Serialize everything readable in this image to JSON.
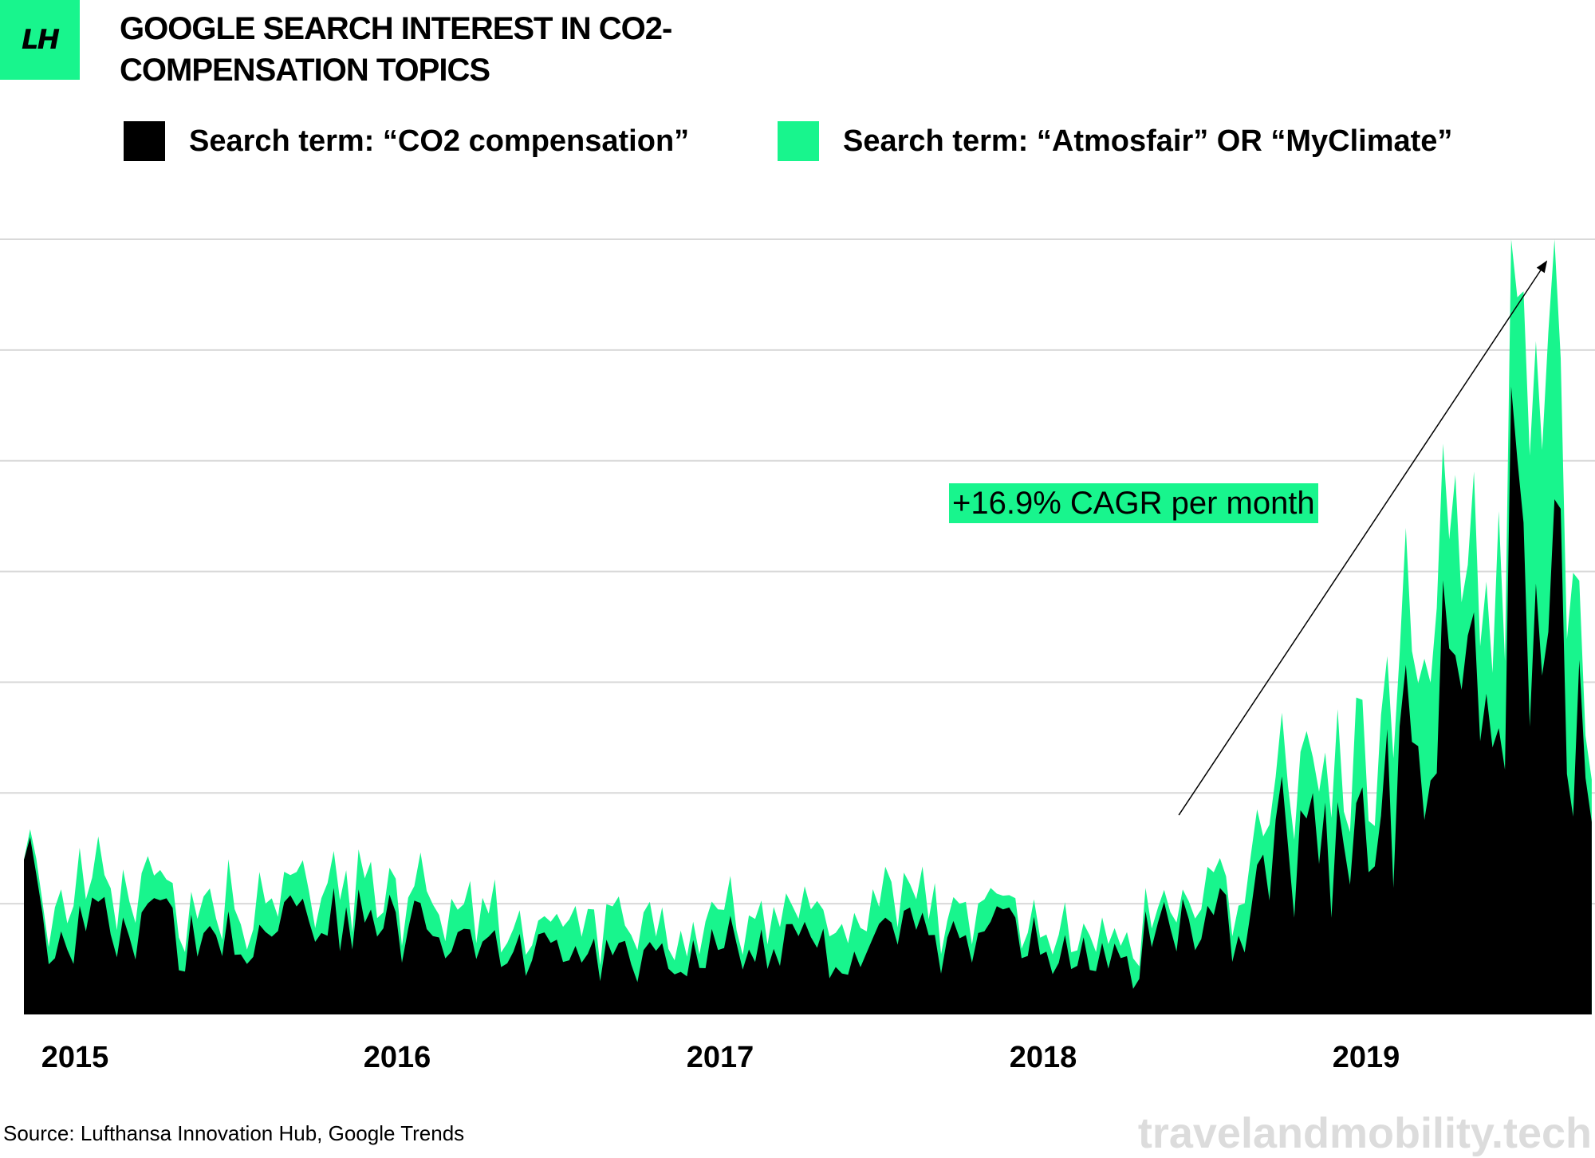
{
  "logo": {
    "text": "LH"
  },
  "chart_data": {
    "type": "area",
    "stacked": true,
    "title": "GOOGLE SEARCH INTEREST IN CO2-COMPENSATION TOPICS",
    "y_axis_labels": false,
    "grid": true,
    "legend_position": "top",
    "x_ticks": [
      "2015",
      "2016",
      "2017",
      "2018",
      "2019"
    ],
    "x_start": 2015.0,
    "x_end": 2019.86,
    "ylim": [
      0,
      7
    ],
    "series": [
      {
        "name": "Search term: “CO2 compensation”",
        "color": "#000000",
        "keyframes": [
          [
            2015.0,
            1.3
          ],
          [
            2015.1,
            0.6
          ],
          [
            2015.2,
            0.8
          ],
          [
            2015.35,
            0.9
          ],
          [
            2015.55,
            0.6
          ],
          [
            2015.75,
            0.8
          ],
          [
            2016.0,
            0.9
          ],
          [
            2016.25,
            0.7
          ],
          [
            2016.5,
            0.6
          ],
          [
            2016.75,
            0.5
          ],
          [
            2017.0,
            0.5
          ],
          [
            2017.2,
            0.7
          ],
          [
            2017.4,
            0.6
          ],
          [
            2017.55,
            0.5
          ],
          [
            2017.7,
            0.7
          ],
          [
            2017.9,
            0.6
          ],
          [
            2018.0,
            0.7
          ],
          [
            2018.2,
            0.6
          ],
          [
            2018.45,
            0.4
          ],
          [
            2018.5,
            1.0
          ],
          [
            2018.6,
            0.8
          ],
          [
            2018.75,
            0.8
          ],
          [
            2018.85,
            1.1
          ],
          [
            2018.9,
            1.6
          ],
          [
            2019.0,
            1.5
          ],
          [
            2019.1,
            1.3
          ],
          [
            2019.2,
            1.6
          ],
          [
            2019.3,
            2.3
          ],
          [
            2019.4,
            2.8
          ],
          [
            2019.5,
            3.8
          ],
          [
            2019.55,
            3.1
          ],
          [
            2019.6,
            4.2
          ],
          [
            2019.65,
            3.6
          ],
          [
            2019.7,
            2.8
          ],
          [
            2019.75,
            3.9
          ],
          [
            2019.8,
            2.6
          ],
          [
            2019.86,
            1.8
          ]
        ]
      },
      {
        "name": "Search term: “Atmosfair” OR “MyClimate”",
        "color": "#18f58d",
        "keyframes": [
          [
            2015.0,
            0.0
          ],
          [
            2015.1,
            0.3
          ],
          [
            2015.2,
            0.4
          ],
          [
            2015.35,
            0.3
          ],
          [
            2015.55,
            0.3
          ],
          [
            2015.75,
            0.3
          ],
          [
            2016.0,
            0.3
          ],
          [
            2016.25,
            0.3
          ],
          [
            2016.5,
            0.3
          ],
          [
            2016.75,
            0.3
          ],
          [
            2017.0,
            0.3
          ],
          [
            2017.2,
            0.3
          ],
          [
            2017.4,
            0.3
          ],
          [
            2017.55,
            0.4
          ],
          [
            2017.7,
            0.3
          ],
          [
            2017.9,
            0.3
          ],
          [
            2018.0,
            0.2
          ],
          [
            2018.2,
            0.2
          ],
          [
            2018.45,
            0.2
          ],
          [
            2018.5,
            0.1
          ],
          [
            2018.6,
            0.2
          ],
          [
            2018.75,
            0.3
          ],
          [
            2018.85,
            0.4
          ],
          [
            2018.9,
            0.6
          ],
          [
            2019.0,
            0.6
          ],
          [
            2019.1,
            0.6
          ],
          [
            2019.2,
            0.7
          ],
          [
            2019.3,
            0.9
          ],
          [
            2019.4,
            1.0
          ],
          [
            2019.5,
            1.4
          ],
          [
            2019.55,
            1.3
          ],
          [
            2019.6,
            1.5
          ],
          [
            2019.65,
            1.6
          ],
          [
            2019.7,
            1.7
          ],
          [
            2019.75,
            2.0
          ],
          [
            2019.8,
            1.5
          ],
          [
            2019.86,
            0.6
          ]
        ]
      }
    ],
    "annotation": {
      "text": "+16.9% CAGR per month",
      "arrow_from": [
        2018.58,
        1.8
      ],
      "arrow_to": [
        2019.72,
        6.8
      ]
    }
  },
  "source": "Source: Lufthansa Innovation Hub, Google Trends",
  "watermark": "travelandmobility.tech"
}
